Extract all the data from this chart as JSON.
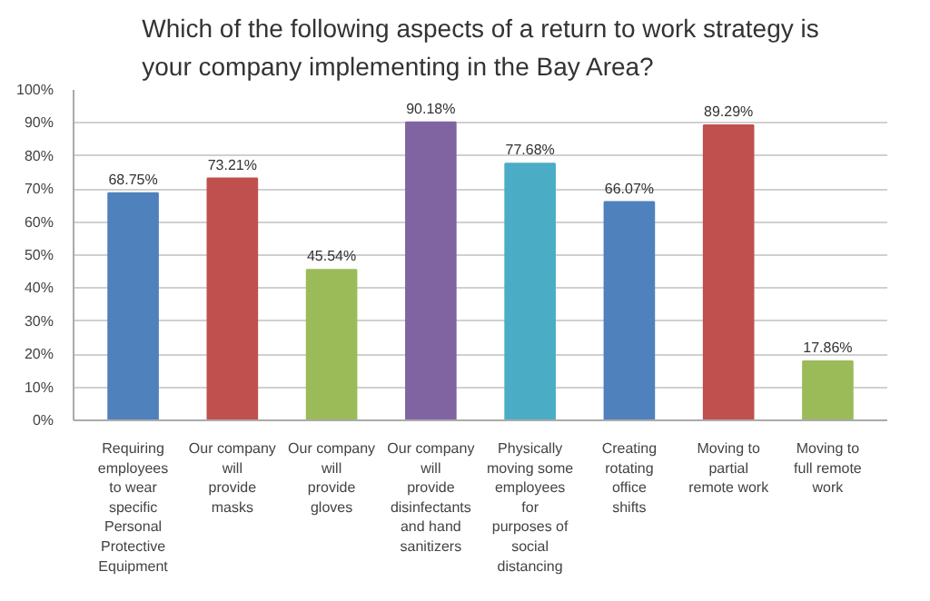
{
  "chart_data": {
    "type": "bar",
    "title": "Which of the following aspects of a return to work strategy is your company implementing in the Bay Area?",
    "categories": [
      "Requiring employees to wear specific Personal Protective Equipment",
      "Our company will provide masks",
      "Our company will provide gloves",
      "Our company will provide disinfectants and hand sanitizers",
      "Physically moving some employees for purposes of social distancing",
      "Creating rotating office shifts",
      "Moving to partial remote work",
      "Moving to full remote work"
    ],
    "values": [
      68.75,
      73.21,
      45.54,
      90.18,
      77.68,
      66.07,
      89.29,
      17.86
    ],
    "value_labels": [
      "68.75%",
      "73.21%",
      "45.54%",
      "90.18%",
      "77.68%",
      "66.07%",
      "89.29%",
      "17.86%"
    ],
    "colors": [
      "#4f81bd",
      "#c0504d",
      "#9bbb59",
      "#8064a2",
      "#4bacc6",
      "#4f81bd",
      "#c0504d",
      "#9bbb59"
    ],
    "ylim": [
      0,
      100
    ],
    "yticks": [
      {
        "value": 0,
        "label": "0%"
      },
      {
        "value": 10,
        "label": "10%"
      },
      {
        "value": 20,
        "label": "20%"
      },
      {
        "value": 30,
        "label": "30%"
      },
      {
        "value": 40,
        "label": "40%"
      },
      {
        "value": 50,
        "label": "50%"
      },
      {
        "value": 60,
        "label": "60%"
      },
      {
        "value": 70,
        "label": "70%"
      },
      {
        "value": 80,
        "label": "80%"
      },
      {
        "value": 90,
        "label": "90%"
      },
      {
        "value": 100,
        "label": "100%"
      }
    ],
    "grid": "y"
  }
}
